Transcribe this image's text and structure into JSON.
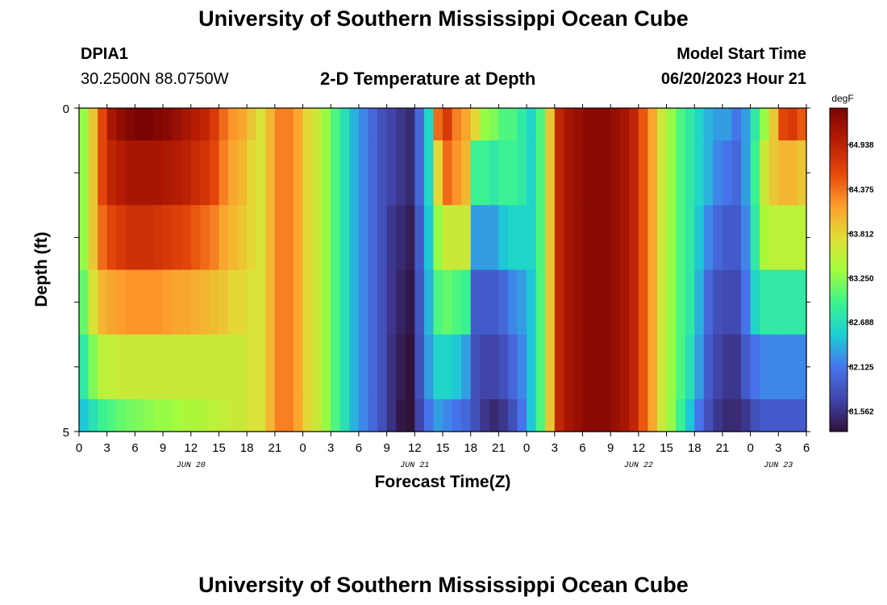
{
  "header": {
    "title": "University of Southern Mississippi Ocean Cube",
    "station_id": "DPIA1",
    "coords": "30.2500N  88.0750W",
    "plot_title": "2-D Temperature at Depth",
    "model_start_label": "Model Start Time",
    "model_start_value": "06/20/2023 Hour 21",
    "footer_title": "University of Southern Mississippi Ocean Cube"
  },
  "chart_data": {
    "type": "heatmap",
    "title": "2-D Temperature at Depth",
    "xlabel": "Forecast Time(Z)",
    "ylabel": "Depth (ft)",
    "x_tick_labels": [
      "0",
      "3",
      "6",
      "9",
      "12",
      "15",
      "18",
      "21",
      "0",
      "3",
      "6",
      "9",
      "12",
      "15",
      "18",
      "21",
      "0",
      "3",
      "6",
      "9",
      "12",
      "15",
      "18",
      "21",
      "0",
      "3",
      "6"
    ],
    "x_tick_hours": [
      0,
      3,
      6,
      9,
      12,
      15,
      18,
      21,
      24,
      27,
      30,
      33,
      36,
      39,
      42,
      45,
      48,
      51,
      54,
      57,
      60,
      63,
      66,
      69,
      72,
      75,
      78
    ],
    "day_labels": [
      {
        "label": "JUN 20",
        "hour": 12
      },
      {
        "label": "JUN 21",
        "hour": 36
      },
      {
        "label": "JUN 22",
        "hour": 60
      },
      {
        "label": "JUN 23",
        "hour": 75
      }
    ],
    "x_range_hours": [
      0,
      78
    ],
    "y_range_ft": [
      0,
      5
    ],
    "y_tick_labels": [
      "0",
      "5"
    ],
    "colorbar": {
      "unit": "degF",
      "min": 81.3,
      "max": 85.4,
      "labels": [
        "84.938",
        "84.375",
        "83.812",
        "83.250",
        "82.688",
        "82.125",
        "81.562"
      ],
      "label_values": [
        84.938,
        84.375,
        83.812,
        83.25,
        82.688,
        82.125,
        81.562
      ]
    },
    "depth_layers_ft": [
      0,
      0.5,
      1.5,
      2.5,
      3.5,
      4.5
    ],
    "time_hours": [
      0,
      1,
      2,
      3,
      4,
      5,
      6,
      7,
      8,
      9,
      10,
      11,
      12,
      13,
      14,
      15,
      16,
      17,
      18,
      19,
      20,
      21,
      22,
      23,
      24,
      25,
      26,
      27,
      28,
      29,
      30,
      31,
      32,
      33,
      34,
      35,
      36,
      37,
      38,
      39,
      40,
      41,
      42,
      43,
      44,
      45,
      46,
      47,
      48,
      49,
      50,
      51,
      52,
      53,
      54,
      55,
      56,
      57,
      58,
      59,
      60,
      61,
      62,
      63,
      64,
      65,
      66,
      67,
      68,
      69,
      70,
      71,
      72,
      73,
      74,
      75,
      76,
      77
    ],
    "temperature_degF": [
      [
        83.3,
        83.9,
        84.6,
        85.1,
        85.25,
        85.35,
        85.4,
        85.4,
        85.35,
        85.3,
        85.2,
        85.1,
        85.0,
        84.9,
        84.7,
        84.4,
        84.2,
        84.1,
        83.9,
        83.7,
        84.0,
        84.3,
        84.3,
        84.1,
        83.8,
        83.6,
        83.3,
        83.0,
        82.7,
        82.4,
        82.2,
        82.0,
        81.8,
        81.7,
        81.6,
        81.5,
        82.0,
        82.6,
        84.4,
        84.7,
        84.3,
        84.1,
        83.8,
        83.3,
        83.2,
        83.0,
        83.0,
        82.8,
        82.6,
        83.0,
        83.9,
        84.9,
        85.1,
        85.2,
        85.3,
        85.3,
        85.3,
        85.2,
        85.1,
        84.9,
        84.5,
        84.1,
        83.6,
        83.3,
        83.0,
        82.8,
        82.6,
        82.4,
        82.3,
        82.3,
        82.1,
        82.3,
        82.8,
        83.3,
        83.9,
        84.6,
        84.7,
        84.5
      ],
      [
        83.3,
        83.9,
        84.6,
        84.9,
        85.0,
        85.1,
        85.1,
        85.1,
        85.1,
        85.05,
        85.0,
        84.95,
        84.85,
        84.75,
        84.6,
        84.3,
        84.1,
        84.0,
        83.8,
        83.7,
        84.0,
        84.3,
        84.3,
        84.1,
        83.8,
        83.6,
        83.3,
        83.0,
        82.7,
        82.4,
        82.2,
        82.0,
        81.8,
        81.7,
        81.6,
        81.5,
        82.0,
        82.6,
        83.8,
        84.4,
        84.2,
        84.0,
        82.9,
        82.9,
        82.8,
        82.9,
        82.9,
        82.8,
        82.6,
        83.0,
        83.9,
        84.9,
        85.1,
        85.2,
        85.3,
        85.3,
        85.3,
        85.2,
        85.1,
        84.9,
        84.5,
        84.1,
        83.6,
        83.3,
        83.0,
        82.8,
        82.6,
        82.4,
        82.2,
        82.1,
        82.0,
        82.3,
        82.9,
        83.6,
        83.9,
        84.0,
        84.0,
        83.9
      ],
      [
        83.3,
        83.9,
        84.4,
        84.6,
        84.7,
        84.8,
        84.8,
        84.8,
        84.75,
        84.7,
        84.65,
        84.6,
        84.5,
        84.4,
        84.3,
        84.1,
        84.0,
        83.9,
        83.8,
        83.7,
        84.0,
        84.3,
        84.3,
        84.1,
        83.8,
        83.6,
        83.3,
        83.0,
        82.7,
        82.4,
        82.2,
        82.0,
        81.8,
        81.6,
        81.5,
        81.4,
        81.9,
        82.5,
        83.3,
        83.6,
        83.6,
        83.6,
        82.3,
        82.3,
        82.3,
        82.5,
        82.6,
        82.6,
        82.6,
        83.0,
        83.9,
        84.9,
        85.1,
        85.2,
        85.3,
        85.3,
        85.3,
        85.2,
        85.1,
        84.9,
        84.5,
        84.1,
        83.6,
        83.3,
        83.0,
        82.8,
        82.5,
        82.2,
        82.0,
        81.9,
        81.9,
        82.2,
        82.8,
        83.4,
        83.5,
        83.5,
        83.5,
        83.5
      ],
      [
        83.1,
        83.7,
        84.0,
        84.1,
        84.15,
        84.2,
        84.2,
        84.2,
        84.2,
        84.15,
        84.1,
        84.1,
        84.05,
        84.0,
        83.95,
        83.9,
        83.8,
        83.8,
        83.7,
        83.7,
        84.0,
        84.3,
        84.3,
        84.1,
        83.8,
        83.6,
        83.3,
        83.0,
        82.7,
        82.4,
        82.2,
        82.0,
        81.8,
        81.6,
        81.45,
        81.35,
        81.85,
        82.4,
        83.0,
        83.1,
        83.0,
        82.9,
        81.9,
        81.9,
        81.9,
        82.0,
        82.2,
        82.3,
        82.5,
        83.0,
        83.9,
        84.9,
        85.1,
        85.2,
        85.3,
        85.3,
        85.3,
        85.2,
        85.1,
        84.9,
        84.5,
        84.1,
        83.6,
        83.3,
        83.0,
        82.8,
        82.4,
        82.0,
        81.8,
        81.75,
        81.75,
        82.1,
        82.6,
        82.8,
        82.8,
        82.8,
        82.8,
        82.8
      ],
      [
        82.8,
        83.2,
        83.5,
        83.55,
        83.6,
        83.6,
        83.6,
        83.6,
        83.6,
        83.6,
        83.6,
        83.6,
        83.6,
        83.6,
        83.6,
        83.6,
        83.6,
        83.6,
        83.7,
        83.7,
        84.0,
        84.3,
        84.3,
        84.1,
        83.8,
        83.6,
        83.3,
        83.0,
        82.7,
        82.4,
        82.2,
        82.0,
        81.8,
        81.55,
        81.4,
        81.3,
        81.8,
        82.3,
        82.6,
        82.6,
        82.5,
        82.3,
        81.8,
        81.7,
        81.7,
        81.8,
        82.0,
        82.2,
        82.5,
        83.0,
        83.9,
        84.9,
        85.1,
        85.2,
        85.3,
        85.3,
        85.3,
        85.2,
        85.1,
        84.9,
        84.5,
        84.1,
        83.6,
        83.3,
        83.0,
        82.7,
        82.3,
        81.9,
        81.7,
        81.6,
        81.6,
        81.9,
        82.1,
        82.2,
        82.2,
        82.2,
        82.2,
        82.2
      ],
      [
        82.5,
        82.7,
        82.9,
        83.0,
        83.1,
        83.15,
        83.2,
        83.25,
        83.3,
        83.3,
        83.35,
        83.4,
        83.4,
        83.45,
        83.5,
        83.55,
        83.6,
        83.6,
        83.7,
        83.7,
        84.0,
        84.3,
        84.3,
        84.1,
        83.8,
        83.6,
        83.3,
        83.0,
        82.7,
        82.4,
        82.2,
        82.0,
        81.8,
        81.55,
        81.35,
        81.3,
        81.7,
        82.1,
        82.3,
        82.2,
        82.1,
        82.0,
        81.8,
        81.6,
        81.5,
        81.6,
        81.8,
        82.1,
        82.5,
        83.0,
        83.9,
        84.9,
        85.1,
        85.2,
        85.3,
        85.3,
        85.3,
        85.2,
        85.1,
        84.9,
        84.5,
        84.1,
        83.6,
        83.3,
        82.9,
        82.5,
        82.1,
        81.8,
        81.6,
        81.5,
        81.5,
        81.6,
        81.8,
        81.9,
        81.9,
        81.9,
        81.9,
        81.9
      ]
    ]
  }
}
